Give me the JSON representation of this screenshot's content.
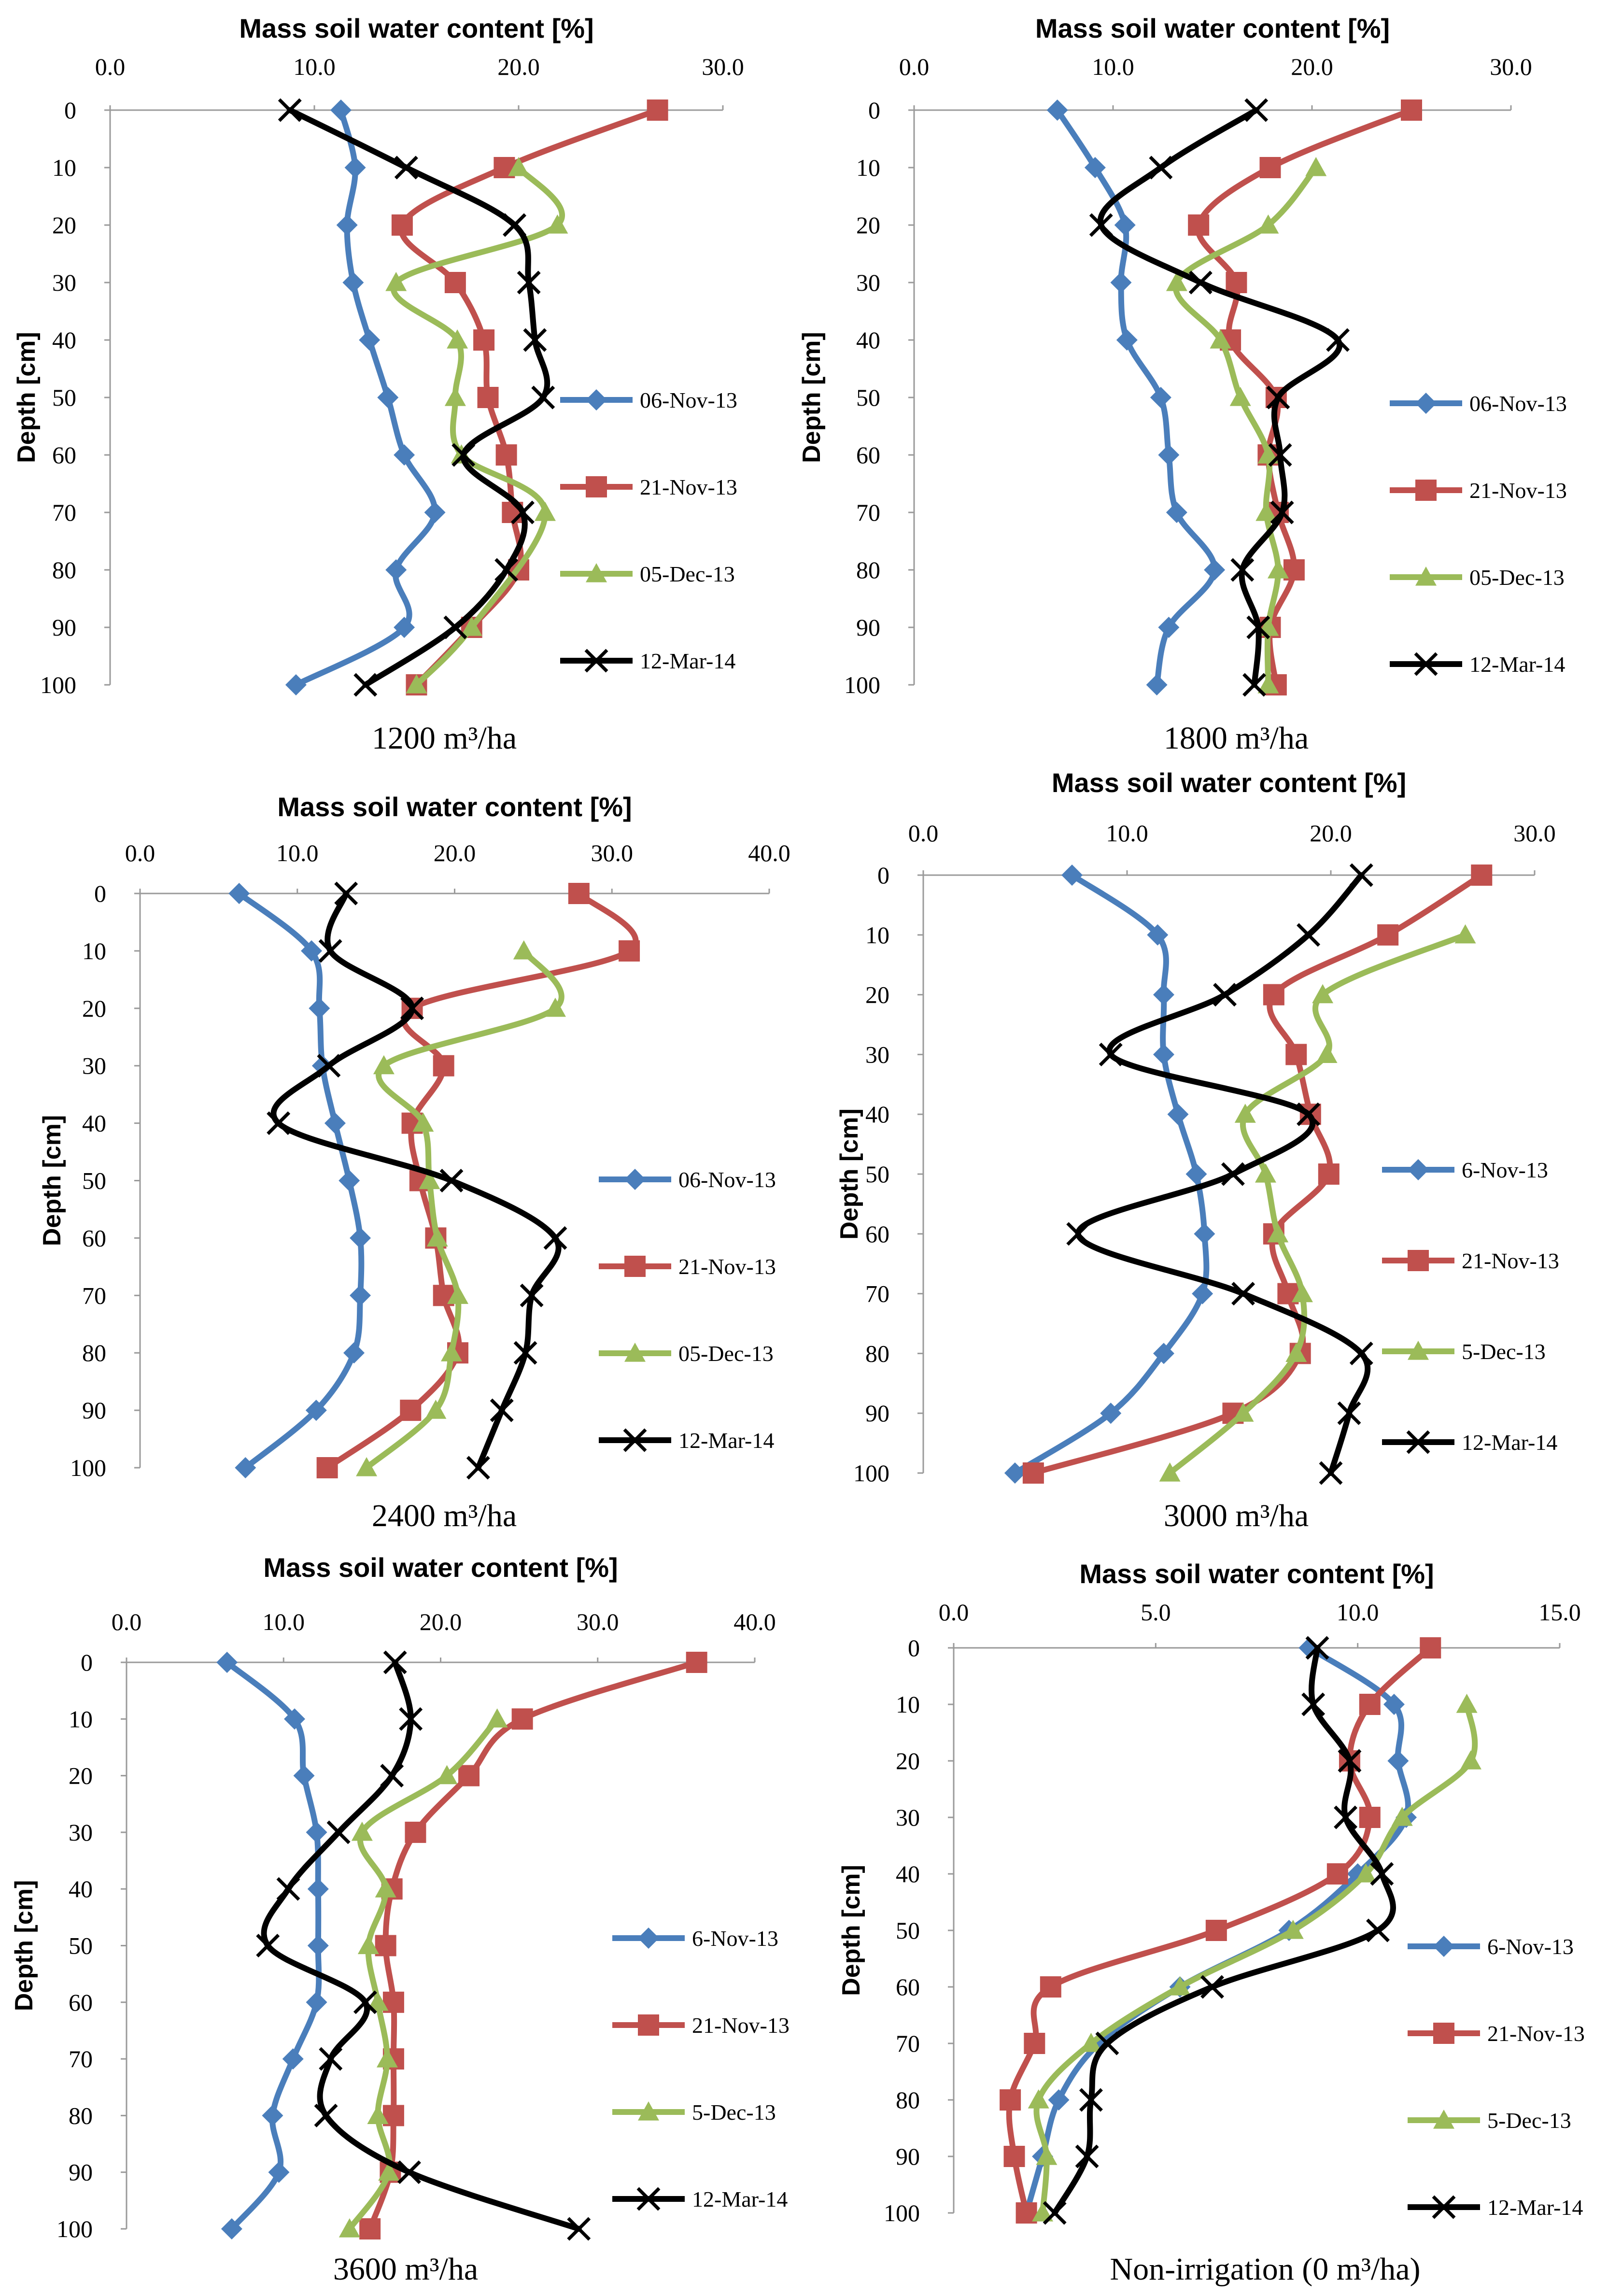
{
  "figure": {
    "series_colors": {
      "06-Nov-13": "#4a7ebb",
      "21-Nov-13": "#c0504d",
      "05-Dec-13": "#9bbb59",
      "12-Mar-14": "#000000"
    }
  },
  "chart_data": [
    {
      "type": "line",
      "title": "Mass soil water content [%]",
      "caption": "1200 m³/ha",
      "xlabel": "Mass soil water content [%]",
      "ylabel": "Depth [cm]",
      "xlim": [
        0,
        30
      ],
      "xticks": [
        "0.0",
        "10.0",
        "20.0",
        "30.0"
      ],
      "ylim": [
        0,
        100
      ],
      "yticks": [
        "0",
        "10",
        "20",
        "30",
        "40",
        "50",
        "60",
        "70",
        "80",
        "90",
        "100"
      ],
      "depths": [
        0,
        10,
        20,
        30,
        40,
        50,
        60,
        70,
        80,
        90,
        100
      ],
      "series": [
        {
          "name": "06-Nov-13",
          "values": [
            11.3,
            12.0,
            11.6,
            11.9,
            12.7,
            13.6,
            14.4,
            15.9,
            14.0,
            14.4,
            9.1
          ]
        },
        {
          "name": "21-Nov-13",
          "values": [
            26.8,
            19.3,
            14.3,
            16.9,
            18.3,
            18.5,
            19.4,
            19.7,
            20.0,
            17.7,
            15.0
          ]
        },
        {
          "name": "05-Dec-13",
          "values": [
            null,
            20.0,
            21.9,
            14.0,
            17.0,
            16.9,
            17.2,
            21.3,
            null,
            17.7,
            15.0
          ]
        },
        {
          "name": "12-Mar-14",
          "values": [
            8.8,
            14.5,
            19.8,
            20.5,
            20.8,
            21.2,
            17.3,
            20.2,
            19.4,
            16.9,
            12.5
          ]
        }
      ]
    },
    {
      "type": "line",
      "title": "Mass soil water content [%]",
      "caption": "1800 m³/ha",
      "xlabel": "Mass soil water content [%]",
      "ylabel": "Depth [cm]",
      "xlim": [
        0,
        30
      ],
      "xticks": [
        "0.0",
        "10.0",
        "20.0",
        "30.0"
      ],
      "ylim": [
        0,
        100
      ],
      "yticks": [
        "0",
        "10",
        "20",
        "30",
        "40",
        "50",
        "60",
        "70",
        "80",
        "90",
        "100"
      ],
      "depths": [
        0,
        10,
        20,
        30,
        40,
        50,
        60,
        70,
        80,
        90,
        100
      ],
      "series": [
        {
          "name": "06-Nov-13",
          "values": [
            7.2,
            9.1,
            10.6,
            10.4,
            10.7,
            12.4,
            12.8,
            13.2,
            15.1,
            12.8,
            12.2
          ]
        },
        {
          "name": "21-Nov-13",
          "values": [
            25.0,
            17.9,
            14.3,
            16.2,
            15.9,
            18.2,
            17.8,
            18.3,
            19.1,
            17.9,
            18.2
          ]
        },
        {
          "name": "05-Dec-13",
          "values": [
            null,
            20.2,
            17.8,
            13.2,
            15.4,
            16.4,
            17.8,
            17.7,
            18.3,
            17.8,
            17.8
          ]
        },
        {
          "name": "12-Mar-14",
          "values": [
            17.2,
            12.4,
            9.4,
            14.4,
            21.3,
            18.3,
            18.4,
            18.5,
            16.5,
            17.3,
            17.1
          ]
        }
      ]
    },
    {
      "type": "line",
      "title": "Mass soil water content [%]",
      "caption": "2400 m³/ha",
      "xlabel": "Mass soil water content [%]",
      "ylabel": "Depth [cm]",
      "xlim": [
        0,
        40
      ],
      "xticks": [
        "0.0",
        "10.0",
        "20.0",
        "30.0",
        "40.0"
      ],
      "ylim": [
        0,
        100
      ],
      "yticks": [
        "0",
        "10",
        "20",
        "30",
        "40",
        "50",
        "60",
        "70",
        "80",
        "90",
        "100"
      ],
      "depths": [
        0,
        10,
        20,
        30,
        40,
        50,
        60,
        70,
        80,
        90,
        100
      ],
      "series": [
        {
          "name": "06-Nov-13",
          "values": [
            6.3,
            10.9,
            11.4,
            11.6,
            12.4,
            13.3,
            14.0,
            14.0,
            13.6,
            11.2,
            6.7
          ]
        },
        {
          "name": "21-Nov-13",
          "values": [
            27.9,
            31.1,
            17.3,
            19.3,
            17.3,
            17.8,
            18.8,
            19.3,
            20.2,
            17.2,
            11.9
          ]
        },
        {
          "name": "05-Dec-13",
          "values": [
            null,
            24.4,
            26.4,
            15.5,
            18.0,
            18.4,
            18.9,
            20.2,
            19.8,
            18.8,
            14.4
          ]
        },
        {
          "name": "12-Mar-14",
          "values": [
            13.1,
            12.1,
            17.3,
            12.0,
            8.8,
            19.8,
            26.4,
            24.9,
            24.5,
            23.0,
            21.5
          ]
        }
      ]
    },
    {
      "type": "line",
      "title": "Mass soil water content [%]",
      "caption": "3000 m³/ha",
      "xlabel": "Mass soil water content [%]",
      "ylabel": "Depth [cm]",
      "xlim": [
        0,
        30
      ],
      "xticks": [
        "0.0",
        "10.0",
        "20.0",
        "30.0"
      ],
      "ylim": [
        0,
        100
      ],
      "yticks": [
        "0",
        "10",
        "20",
        "30",
        "40",
        "50",
        "60",
        "70",
        "80",
        "90",
        "100"
      ],
      "depths": [
        0,
        10,
        20,
        30,
        40,
        50,
        60,
        70,
        80,
        90,
        100
      ],
      "series": [
        {
          "name": "6-Nov-13",
          "values": [
            7.3,
            11.5,
            11.8,
            11.8,
            12.5,
            13.4,
            13.8,
            13.7,
            11.8,
            9.2,
            4.5
          ]
        },
        {
          "name": "21-Nov-13",
          "values": [
            27.4,
            22.8,
            17.2,
            18.3,
            19.0,
            19.9,
            17.2,
            17.9,
            18.5,
            15.2,
            5.4
          ]
        },
        {
          "name": "5-Dec-13",
          "values": [
            null,
            26.6,
            19.6,
            19.8,
            15.8,
            16.8,
            17.4,
            18.6,
            18.3,
            15.7,
            12.1
          ]
        },
        {
          "name": "12-Mar-14",
          "values": [
            21.5,
            18.9,
            14.8,
            9.2,
            18.9,
            15.2,
            7.6,
            15.7,
            21.5,
            20.9,
            20.0
          ]
        }
      ]
    },
    {
      "type": "line",
      "title": "Mass soil water content [%]",
      "caption": "3600 m³/ha",
      "xlabel": "Mass soil water content [%]",
      "ylabel": "Depth [cm]",
      "xlim": [
        0,
        40
      ],
      "xticks": [
        "0.0",
        "10.0",
        "20.0",
        "30.0",
        "40.0"
      ],
      "ylim": [
        0,
        100
      ],
      "yticks": [
        "0",
        "10",
        "20",
        "30",
        "40",
        "50",
        "60",
        "70",
        "80",
        "90",
        "100"
      ],
      "depths": [
        0,
        10,
        20,
        30,
        40,
        50,
        60,
        70,
        80,
        90,
        100
      ],
      "series": [
        {
          "name": "6-Nov-13",
          "values": [
            6.4,
            10.7,
            11.3,
            12.1,
            12.2,
            12.2,
            12.1,
            10.6,
            9.3,
            9.7,
            6.7
          ]
        },
        {
          "name": "21-Nov-13",
          "values": [
            36.3,
            25.2,
            21.8,
            18.4,
            16.9,
            16.5,
            17.0,
            17.0,
            17.0,
            16.8,
            15.5
          ]
        },
        {
          "name": "5-Dec-13",
          "values": [
            null,
            23.6,
            20.4,
            15.0,
            16.5,
            15.4,
            16.0,
            16.6,
            16.0,
            16.7,
            14.2
          ]
        },
        {
          "name": "12-Mar-14",
          "values": [
            17.1,
            18.1,
            16.9,
            13.5,
            10.3,
            9.0,
            15.2,
            13.0,
            12.7,
            18.0,
            28.8
          ]
        }
      ]
    },
    {
      "type": "line",
      "title": "Mass soil water content [%]",
      "caption": "Non-irrigation (0 m³/ha)",
      "xlabel": "Mass soil water content [%]",
      "ylabel": "Depth [cm]",
      "xlim": [
        0,
        15
      ],
      "xticks": [
        "0.0",
        "5.0",
        "10.0",
        "15.0"
      ],
      "ylim": [
        0,
        100
      ],
      "yticks": [
        "0",
        "10",
        "20",
        "30",
        "40",
        "50",
        "60",
        "70",
        "80",
        "90",
        "100"
      ],
      "depths": [
        0,
        10,
        20,
        30,
        40,
        50,
        60,
        70,
        80,
        90,
        100
      ],
      "series": [
        {
          "name": "6-Nov-13",
          "values": [
            8.8,
            10.9,
            11.0,
            11.2,
            10.0,
            8.3,
            5.6,
            3.6,
            2.6,
            2.2,
            1.8
          ]
        },
        {
          "name": "21-Nov-13",
          "values": [
            11.8,
            10.3,
            9.8,
            10.3,
            9.5,
            6.5,
            2.4,
            2.0,
            1.4,
            1.5,
            1.8
          ]
        },
        {
          "name": "5-Dec-13",
          "values": [
            null,
            12.7,
            12.8,
            11.1,
            10.2,
            8.4,
            5.6,
            3.4,
            2.1,
            2.3,
            2.2
          ]
        },
        {
          "name": "12-Mar-14",
          "values": [
            9.0,
            8.9,
            9.8,
            9.7,
            10.6,
            10.5,
            6.4,
            3.8,
            3.4,
            3.3,
            2.5
          ]
        }
      ]
    }
  ]
}
